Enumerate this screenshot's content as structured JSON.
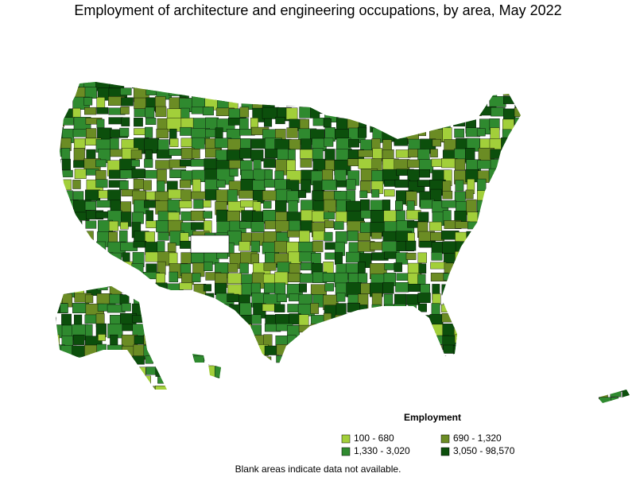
{
  "title": "Employment of architecture and engineering occupations, by area, May 2022",
  "legend": {
    "title": "Employment",
    "items": [
      {
        "label": "100 - 680",
        "color": "#a2cf3a"
      },
      {
        "label": "690 - 1,320",
        "color": "#6b8c24"
      },
      {
        "label": "1,330 - 3,020",
        "color": "#2f8a2f"
      },
      {
        "label": "3,050 - 98,570",
        "color": "#0c4f0c"
      }
    ]
  },
  "note": "Blank areas indicate data not available."
}
